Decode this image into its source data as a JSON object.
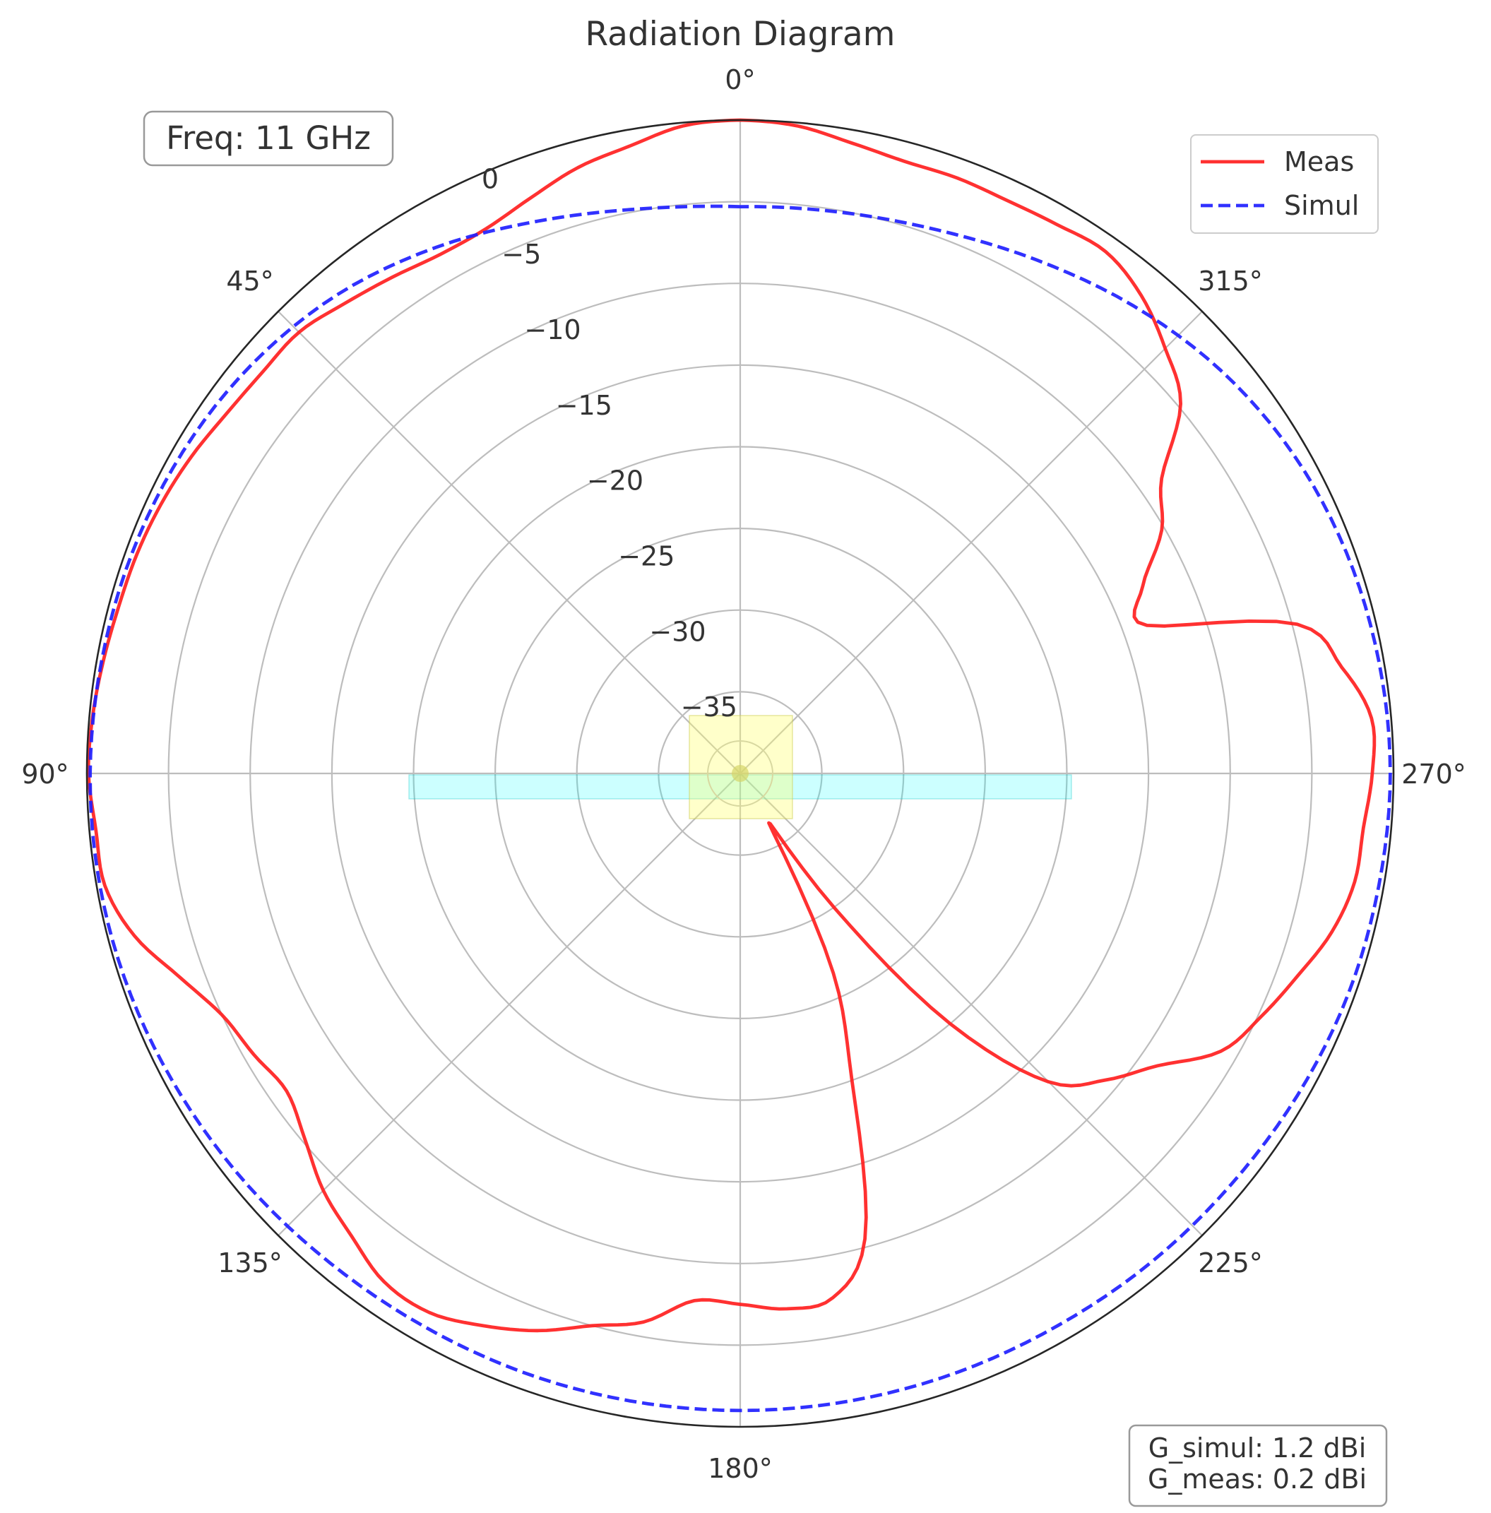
{
  "chart_data": {
    "type": "line",
    "subtype": "polar",
    "title": "Radiation Diagram",
    "theta_direction": "counterclockwise",
    "theta_zero": "top",
    "angle_ticks": [
      "0°",
      "45°",
      "90°",
      "135°",
      "180°",
      "225°",
      "270°",
      "315°"
    ],
    "radial_ticks": [
      "0",
      "−5",
      "−10",
      "−15",
      "−20",
      "−25",
      "−30",
      "−35"
    ],
    "radial_tick_values": [
      0,
      -5,
      -10,
      -15,
      -20,
      -25,
      -30,
      -35
    ],
    "rlim": [
      -40,
      0
    ],
    "grid": true,
    "legend_position": "top-right",
    "series": [
      {
        "name": "Meas",
        "color": "#ff2020",
        "style": "solid",
        "theta": [
          0,
          5,
          10,
          15,
          20,
          25,
          30,
          35,
          40,
          45,
          50,
          55,
          60,
          65,
          70,
          75,
          80,
          85,
          90,
          95,
          100,
          105,
          110,
          115,
          120,
          125,
          130,
          135,
          140,
          145,
          150,
          155,
          160,
          165,
          170,
          175,
          180,
          185,
          190,
          195,
          200,
          205,
          210,
          215,
          220,
          225,
          230,
          235,
          240,
          245,
          250,
          255,
          260,
          265,
          270,
          275,
          280,
          285,
          290,
          295,
          300,
          305,
          310,
          315,
          320,
          325,
          330,
          335,
          340,
          345,
          350,
          355,
          360
        ],
        "r": [
          0.0,
          -0.2,
          -1.0,
          -1.6,
          -2.5,
          -3.2,
          -3.3,
          -2.9,
          -2.4,
          -1.8,
          -1.8,
          -1.6,
          -1.2,
          -0.9,
          -0.7,
          -0.6,
          -0.4,
          -0.2,
          -0.1,
          -0.4,
          -0.5,
          -1.6,
          -3.5,
          -5.0,
          -5.6,
          -6.1,
          -5.2,
          -3.9,
          -3.0,
          -2.0,
          -1.9,
          -2.7,
          -3.7,
          -5.0,
          -5.9,
          -7.6,
          -7.5,
          -7.1,
          -7.4,
          -10.5,
          -20.0,
          -26.5,
          -36.5,
          -30.0,
          -20.0,
          -13.3,
          -10.8,
          -8.8,
          -6.0,
          -4.8,
          -3.7,
          -2.5,
          -1.8,
          -1.7,
          -1.3,
          -1.2,
          -2.6,
          -4.7,
          -13.5,
          -12.8,
          -10.2,
          -8.5,
          -4.8,
          -3.2,
          -1.8,
          -1.0,
          -1.2,
          -1.3,
          -1.2,
          -1.2,
          -0.8,
          -0.2,
          0.0
        ]
      },
      {
        "name": "Simul",
        "color": "#2020ff",
        "style": "dashed",
        "theta": [
          0,
          10,
          20,
          30,
          40,
          50,
          60,
          70,
          80,
          90,
          100,
          110,
          120,
          130,
          140,
          150,
          160,
          170,
          180,
          190,
          200,
          210,
          220,
          230,
          240,
          250,
          260,
          270,
          280,
          290,
          300,
          310,
          320,
          330,
          340,
          350,
          360
        ],
        "r": [
          -5.3,
          -4.9,
          -4.0,
          -2.8,
          -1.7,
          -1.0,
          -0.6,
          -0.4,
          -0.3,
          -0.2,
          -0.2,
          -0.3,
          -0.5,
          -0.7,
          -0.9,
          -1.0,
          -1.0,
          -1.0,
          -1.0,
          -1.0,
          -1.0,
          -1.0,
          -0.9,
          -0.8,
          -0.6,
          -0.4,
          -0.3,
          -0.2,
          -0.3,
          -0.5,
          -0.9,
          -1.6,
          -2.6,
          -3.7,
          -4.6,
          -5.1,
          -5.3
        ]
      }
    ]
  },
  "annotations": {
    "freq": "Freq: 11 GHz",
    "gain_simul": "G_simul: 1.2 dBi",
    "gain_meas": "G_meas: 0.2 dBi"
  }
}
